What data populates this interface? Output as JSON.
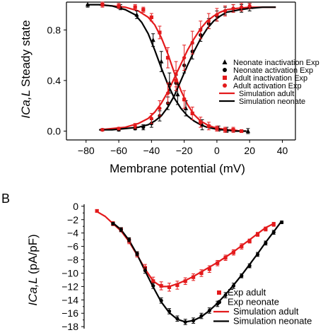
{
  "colors": {
    "adult": "#e31a1c",
    "neonate": "#000000"
  },
  "chart_data": [
    {
      "panel_label": "",
      "type": "scatter",
      "xlabel": "Membrane potential (mV)",
      "ylabel_italic": "ICa,L",
      "ylabel_rest": "Steady state",
      "xlim": [
        -92,
        48
      ],
      "ylim": [
        -0.07,
        1.02
      ],
      "xticks": [
        -80,
        -60,
        -40,
        -20,
        0,
        20,
        40
      ],
      "yticks": [
        0.0,
        0.4,
        0.8
      ],
      "ytick_labels": [
        "0.0",
        "0.4",
        "0.8"
      ],
      "legend_position": "right",
      "series": [
        {
          "name": "Neonate inactivation Exp",
          "kind": "points",
          "marker": "triangle",
          "color": "#000000",
          "x": [
            -79,
            -59,
            -49,
            -39,
            -34,
            -29,
            -24,
            -19,
            -9,
            1,
            6,
            19
          ],
          "y": [
            1.0,
            0.98,
            0.92,
            0.72,
            0.55,
            0.38,
            0.29,
            0.18,
            0.05,
            0.02,
            0.01,
            0.0
          ],
          "err": [
            0.02,
            0.02,
            0.03,
            0.05,
            0.08,
            0.08,
            0.08,
            0.06,
            0.04,
            0.02,
            0.02,
            0.02
          ]
        },
        {
          "name": "Neonate activation Exp",
          "kind": "points",
          "marker": "circle",
          "color": "#000000",
          "x": [
            -70,
            -60,
            -50,
            -45,
            -40,
            -35,
            -30,
            -25,
            -20,
            -15,
            -10,
            -5,
            0,
            5,
            10,
            15,
            20
          ],
          "y": [
            0.01,
            0.01,
            0.02,
            0.03,
            0.06,
            0.12,
            0.22,
            0.38,
            0.52,
            0.63,
            0.76,
            0.85,
            0.91,
            0.95,
            0.97,
            0.97,
            0.98
          ],
          "err": [
            0.01,
            0.01,
            0.01,
            0.02,
            0.03,
            0.04,
            0.05,
            0.06,
            0.06,
            0.06,
            0.05,
            0.04,
            0.04,
            0.03,
            0.03,
            0.03,
            0.03
          ]
        },
        {
          "name": "Adult  inactivation Exp",
          "kind": "points",
          "marker": "square",
          "color": "#e31a1c",
          "x": [
            -70,
            -60,
            -50,
            -45,
            -40,
            -35,
            -30,
            -25,
            -20,
            -15,
            -10,
            -5,
            0,
            5,
            10,
            15
          ],
          "y": [
            1.0,
            0.99,
            0.98,
            0.96,
            0.9,
            0.78,
            0.58,
            0.4,
            0.25,
            0.14,
            0.07,
            0.04,
            0.02,
            0.01,
            0.01,
            0.0
          ],
          "err": [
            0.02,
            0.02,
            0.02,
            0.02,
            0.03,
            0.05,
            0.08,
            0.08,
            0.07,
            0.05,
            0.04,
            0.03,
            0.02,
            0.02,
            0.02,
            0.01
          ]
        },
        {
          "name": "Adult activation Exp",
          "kind": "points",
          "marker": "circle",
          "color": "#e31a1c",
          "x": [
            -70,
            -60,
            -50,
            -40,
            -35,
            -30,
            -25,
            -20,
            -15,
            -10,
            -5,
            0,
            5,
            10,
            15,
            20
          ],
          "y": [
            0.01,
            0.02,
            0.04,
            0.1,
            0.18,
            0.3,
            0.45,
            0.58,
            0.7,
            0.8,
            0.87,
            0.92,
            0.95,
            0.97,
            0.98,
            0.99
          ],
          "err": [
            0.01,
            0.01,
            0.02,
            0.04,
            0.06,
            0.08,
            0.1,
            0.1,
            0.09,
            0.07,
            0.06,
            0.05,
            0.04,
            0.03,
            0.03,
            0.02
          ]
        },
        {
          "name": "Simulation  adult",
          "kind": "line",
          "color": "#e31a1c",
          "x": [
            -72,
            -64,
            -56,
            -48,
            -42,
            -38,
            -34,
            -30,
            -26,
            -22,
            -18,
            -14,
            -10,
            -6,
            -2,
            2,
            6,
            10,
            14,
            18
          ],
          "y": [
            1.0,
            0.99,
            0.98,
            0.95,
            0.9,
            0.84,
            0.74,
            0.61,
            0.46,
            0.32,
            0.21,
            0.13,
            0.08,
            0.05,
            0.03,
            0.02,
            0.01,
            0.01,
            0.0,
            0.0
          ]
        },
        {
          "name": "Simulation  adult",
          "kind": "line",
          "color": "#e31a1c",
          "legend": false,
          "x": [
            -72,
            -64,
            -56,
            -48,
            -42,
            -38,
            -34,
            -30,
            -26,
            -22,
            -18,
            -14,
            -10,
            -6,
            -2,
            2,
            6,
            12,
            20,
            28,
            36
          ],
          "y": [
            0.01,
            0.02,
            0.03,
            0.06,
            0.1,
            0.15,
            0.22,
            0.31,
            0.42,
            0.53,
            0.64,
            0.73,
            0.81,
            0.87,
            0.91,
            0.94,
            0.96,
            0.97,
            0.98,
            0.98,
            0.98
          ]
        },
        {
          "name": "Simulation  neonate",
          "kind": "line",
          "color": "#000000",
          "x": [
            -80,
            -72,
            -64,
            -56,
            -50,
            -46,
            -42,
            -38,
            -34,
            -30,
            -26,
            -22,
            -18,
            -14,
            -10,
            -6,
            -2,
            2,
            6,
            10,
            14,
            18
          ],
          "y": [
            1.0,
            1.0,
            0.99,
            0.96,
            0.92,
            0.86,
            0.77,
            0.64,
            0.5,
            0.37,
            0.26,
            0.18,
            0.12,
            0.08,
            0.05,
            0.03,
            0.02,
            0.01,
            0.01,
            0.0,
            0.0,
            0.0
          ]
        },
        {
          "name": "Simulation  neonate",
          "kind": "line",
          "color": "#000000",
          "legend": false,
          "x": [
            -72,
            -64,
            -56,
            -48,
            -42,
            -38,
            -34,
            -30,
            -26,
            -22,
            -18,
            -14,
            -10,
            -6,
            -2,
            2,
            6,
            10,
            14,
            20,
            28,
            36
          ],
          "y": [
            0.01,
            0.01,
            0.02,
            0.03,
            0.05,
            0.08,
            0.12,
            0.19,
            0.28,
            0.4,
            0.52,
            0.63,
            0.73,
            0.81,
            0.87,
            0.91,
            0.94,
            0.95,
            0.96,
            0.97,
            0.98,
            0.98
          ]
        }
      ]
    },
    {
      "panel_label": "B",
      "type": "scatter",
      "xlabel": "",
      "ylabel_italic": "ICa,L",
      "ylabel_rest": "(pA/pF)",
      "xlim": [
        -78,
        50
      ],
      "ylim": [
        -18.3,
        0.3
      ],
      "yticks": [
        0,
        -2,
        -4,
        -6,
        -8,
        -10,
        -12,
        -14,
        -16,
        -18
      ],
      "ytick_labels": [
        "0",
        "−2",
        "−4",
        "−6",
        "−8",
        "−10",
        "−12",
        "−14",
        "−16",
        "−18"
      ],
      "legend_position": "bottom-right",
      "series": [
        {
          "name": "Exp adult",
          "kind": "points",
          "marker": "square",
          "color": "#e31a1c",
          "x": [
            -70,
            -60,
            -55,
            -50,
            -45,
            -40,
            -35,
            -30,
            -25,
            -20,
            -15,
            -10,
            -5,
            0,
            5,
            10,
            15,
            20,
            25,
            30,
            35,
            40
          ],
          "y": [
            -0.7,
            -2.6,
            -3.5,
            -5.2,
            -7.2,
            -9.2,
            -11.2,
            -11.9,
            -12.1,
            -11.8,
            -11.2,
            -10.6,
            -10.0,
            -9.4,
            -8.5,
            -7.7,
            -6.9,
            -6.0,
            -5.2,
            -4.2,
            -3.4,
            -2.7
          ],
          "err": [
            0.2,
            0.3,
            0.3,
            0.4,
            0.4,
            0.5,
            0.6,
            0.6,
            0.6,
            0.6,
            0.5,
            0.5,
            0.5,
            0.5,
            0.4,
            0.4,
            0.4,
            0.4,
            0.3,
            0.3,
            0.3,
            0.3
          ]
        },
        {
          "name": "Exp neonate",
          "kind": "points",
          "marker": "circle",
          "color": "#000000",
          "x": [
            -60,
            -55,
            -50,
            -45,
            -40,
            -35,
            -30,
            -25,
            -20,
            -15,
            -10,
            -5,
            0,
            5,
            10,
            15,
            20,
            25,
            30,
            35,
            40,
            45
          ],
          "y": [
            -2.6,
            -3.5,
            -5.0,
            -7.1,
            -9.6,
            -11.9,
            -14.1,
            -15.7,
            -16.8,
            -17.3,
            -17.1,
            -16.4,
            -15.6,
            -14.6,
            -13.3,
            -11.9,
            -10.4,
            -8.9,
            -7.2,
            -5.5,
            -3.9,
            -2.4
          ],
          "err": [
            0.2,
            0.3,
            0.3,
            0.3,
            0.4,
            0.4,
            0.4,
            0.4,
            0.4,
            0.4,
            0.4,
            0.4,
            0.4,
            0.4,
            0.4,
            0.4,
            0.3,
            0.3,
            0.3,
            0.3,
            0.3,
            0.2
          ]
        },
        {
          "name": "Simulation adult",
          "kind": "line",
          "color": "#e31a1c",
          "x": [
            -70,
            -65,
            -60,
            -55,
            -50,
            -45,
            -40,
            -35,
            -30,
            -25,
            -20,
            -15,
            -10,
            -5,
            0,
            5,
            10,
            15,
            20,
            25,
            30,
            35,
            40
          ],
          "y": [
            -0.8,
            -1.5,
            -2.6,
            -3.7,
            -5.3,
            -7.3,
            -9.4,
            -11.2,
            -12.0,
            -12.0,
            -11.6,
            -11.1,
            -10.5,
            -9.8,
            -9.1,
            -8.4,
            -7.6,
            -6.8,
            -5.9,
            -5.0,
            -4.1,
            -3.2,
            -2.6
          ]
        },
        {
          "name": "Simulation neonate",
          "kind": "line",
          "color": "#000000",
          "x": [
            -60,
            -55,
            -50,
            -45,
            -40,
            -35,
            -30,
            -25,
            -20,
            -15,
            -10,
            -5,
            0,
            5,
            10,
            15,
            20,
            25,
            30,
            35,
            40,
            45
          ],
          "y": [
            -2.5,
            -3.5,
            -5.1,
            -7.2,
            -9.7,
            -12.1,
            -14.3,
            -15.9,
            -16.9,
            -17.3,
            -17.1,
            -16.5,
            -15.6,
            -14.5,
            -13.2,
            -11.8,
            -10.3,
            -8.7,
            -7.1,
            -5.4,
            -3.8,
            -2.2
          ]
        }
      ]
    }
  ]
}
